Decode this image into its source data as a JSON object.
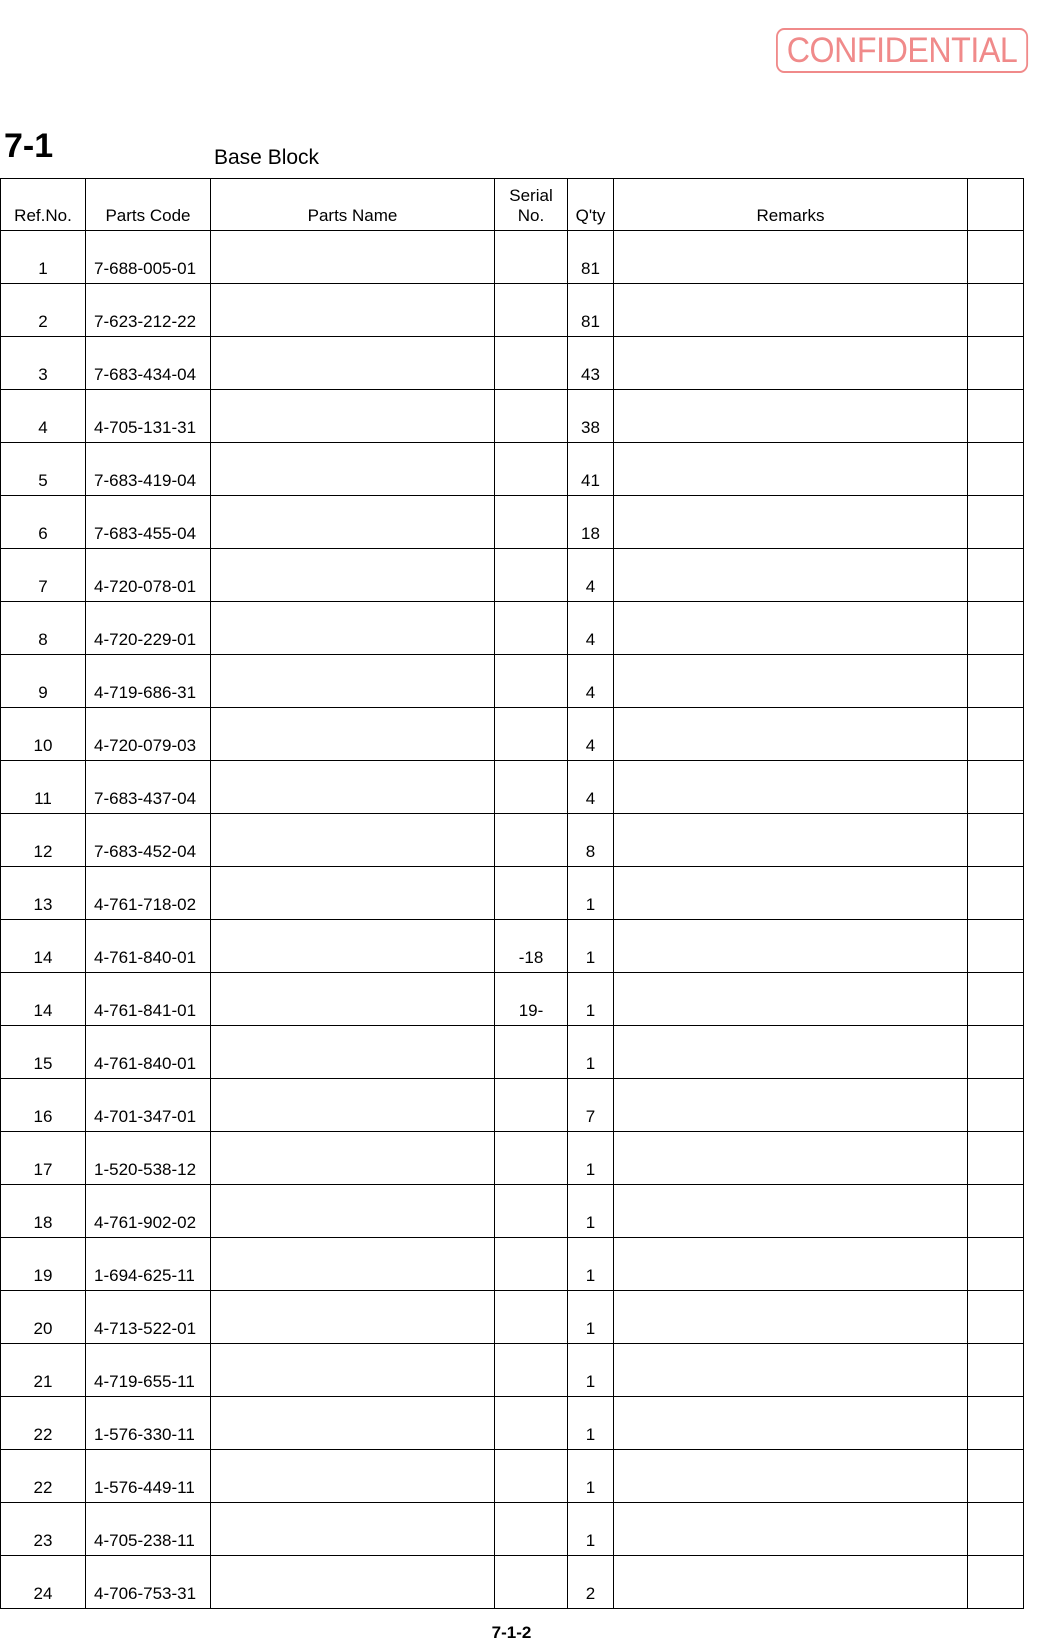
{
  "stamp": "CONFIDENTIAL",
  "section": {
    "number": "7-1",
    "title": "Base Block"
  },
  "table": {
    "headers": {
      "ref_no": "Ref.No.",
      "parts_code": "Parts Code",
      "parts_name": "Parts Name",
      "serial_no_line1": "Serial",
      "serial_no_line2": "No.",
      "qty": "Q'ty",
      "remarks": "Remarks",
      "extra": ""
    },
    "rows": [
      {
        "ref": "1",
        "code": "7-688-005-01",
        "name": "",
        "serial": "",
        "qty": "81",
        "remarks": ""
      },
      {
        "ref": "2",
        "code": "7-623-212-22",
        "name": "",
        "serial": "",
        "qty": "81",
        "remarks": ""
      },
      {
        "ref": "3",
        "code": "7-683-434-04",
        "name": "",
        "serial": "",
        "qty": "43",
        "remarks": ""
      },
      {
        "ref": "4",
        "code": "4-705-131-31",
        "name": "",
        "serial": "",
        "qty": "38",
        "remarks": ""
      },
      {
        "ref": "5",
        "code": "7-683-419-04",
        "name": "",
        "serial": "",
        "qty": "41",
        "remarks": ""
      },
      {
        "ref": "6",
        "code": "7-683-455-04",
        "name": "",
        "serial": "",
        "qty": "18",
        "remarks": ""
      },
      {
        "ref": "7",
        "code": "4-720-078-01",
        "name": "",
        "serial": "",
        "qty": "4",
        "remarks": ""
      },
      {
        "ref": "8",
        "code": "4-720-229-01",
        "name": "",
        "serial": "",
        "qty": "4",
        "remarks": ""
      },
      {
        "ref": "9",
        "code": "4-719-686-31",
        "name": "",
        "serial": "",
        "qty": "4",
        "remarks": ""
      },
      {
        "ref": "10",
        "code": "4-720-079-03",
        "name": "",
        "serial": "",
        "qty": "4",
        "remarks": ""
      },
      {
        "ref": "11",
        "code": "7-683-437-04",
        "name": "",
        "serial": "",
        "qty": "4",
        "remarks": ""
      },
      {
        "ref": "12",
        "code": "7-683-452-04",
        "name": "",
        "serial": "",
        "qty": "8",
        "remarks": ""
      },
      {
        "ref": "13",
        "code": "4-761-718-02",
        "name": "",
        "serial": "",
        "qty": "1",
        "remarks": ""
      },
      {
        "ref": "14",
        "code": "4-761-840-01",
        "name": "",
        "serial": "-18",
        "qty": "1",
        "remarks": ""
      },
      {
        "ref": "14",
        "code": "4-761-841-01",
        "name": "",
        "serial": "19-",
        "qty": "1",
        "remarks": ""
      },
      {
        "ref": "15",
        "code": "4-761-840-01",
        "name": "",
        "serial": "",
        "qty": "1",
        "remarks": ""
      },
      {
        "ref": "16",
        "code": "4-701-347-01",
        "name": "",
        "serial": "",
        "qty": "7",
        "remarks": ""
      },
      {
        "ref": "17",
        "code": "1-520-538-12",
        "name": "",
        "serial": "",
        "qty": "1",
        "remarks": ""
      },
      {
        "ref": "18",
        "code": "4-761-902-02",
        "name": "",
        "serial": "",
        "qty": "1",
        "remarks": ""
      },
      {
        "ref": "19",
        "code": "1-694-625-11",
        "name": "",
        "serial": "",
        "qty": "1",
        "remarks": ""
      },
      {
        "ref": "20",
        "code": "4-713-522-01",
        "name": "",
        "serial": "",
        "qty": "1",
        "remarks": ""
      },
      {
        "ref": "21",
        "code": "4-719-655-11",
        "name": "",
        "serial": "",
        "qty": "1",
        "remarks": ""
      },
      {
        "ref": "22",
        "code": "1-576-330-11",
        "name": "",
        "serial": "",
        "qty": "1",
        "remarks": ""
      },
      {
        "ref": "22",
        "code": "1-576-449-11",
        "name": "",
        "serial": "",
        "qty": "1",
        "remarks": ""
      },
      {
        "ref": "23",
        "code": "4-705-238-11",
        "name": "",
        "serial": "",
        "qty": "1",
        "remarks": ""
      },
      {
        "ref": "24",
        "code": "4-706-753-31",
        "name": "",
        "serial": "",
        "qty": "2",
        "remarks": ""
      }
    ]
  },
  "footer": {
    "page": "7-1-2"
  }
}
